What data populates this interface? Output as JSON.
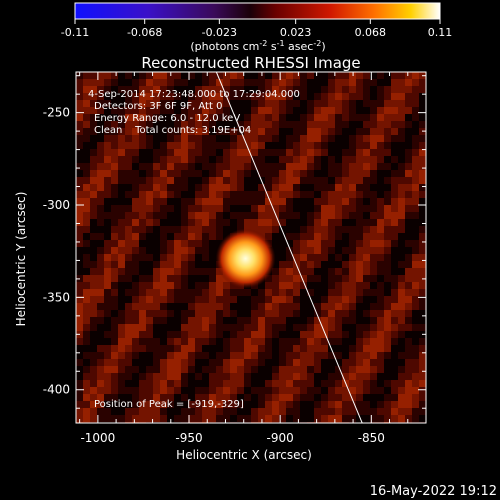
{
  "colorbar": {
    "tick_labels": [
      "-0.11",
      "-0.068",
      "-0.023",
      "0.023",
      "0.068",
      "0.11"
    ],
    "tick_values": [
      -0.11,
      -0.068,
      -0.023,
      0.023,
      0.068,
      0.11
    ],
    "range": [
      -0.11,
      0.11
    ],
    "units_text": "(photons cm",
    "units_sup1": "-2",
    "units_mid": " s",
    "units_sup2": "-1",
    "units_end": " asec",
    "units_sup3": "-2",
    "units_close": ")"
  },
  "plot": {
    "title": "Reconstructed RHESSI Image",
    "annotations": [
      "4-Sep-2014 17:23:48.000 to 17:29:04.000",
      "Detectors: 3F 6F 9F, Att 0",
      "Energy Range: 6.0 - 12.0 keV",
      "Clean    Total counts: 3.19E+04"
    ],
    "peak_label": "Position of Peak = [-919,-329]",
    "xlabel": "Heliocentric X (arcsec)",
    "ylabel": "Heliocentric Y (arcsec)",
    "x_ticks": [
      "-1000",
      "-950",
      "-900",
      "-850"
    ],
    "x_tick_values": [
      -1000,
      -950,
      -900,
      -850
    ],
    "y_ticks": [
      "-250",
      "-300",
      "-350",
      "-400"
    ],
    "y_tick_values": [
      -250,
      -300,
      -350,
      -400
    ],
    "xlim": [
      -1012,
      -820
    ],
    "ylim": [
      -418,
      -228
    ],
    "peak": {
      "x": -919,
      "y": -329
    },
    "limb_line": [
      [
        -935,
        -228
      ],
      [
        -855,
        -418
      ]
    ]
  },
  "footer": {
    "timestamp": "16-May-2022 19:12"
  }
}
